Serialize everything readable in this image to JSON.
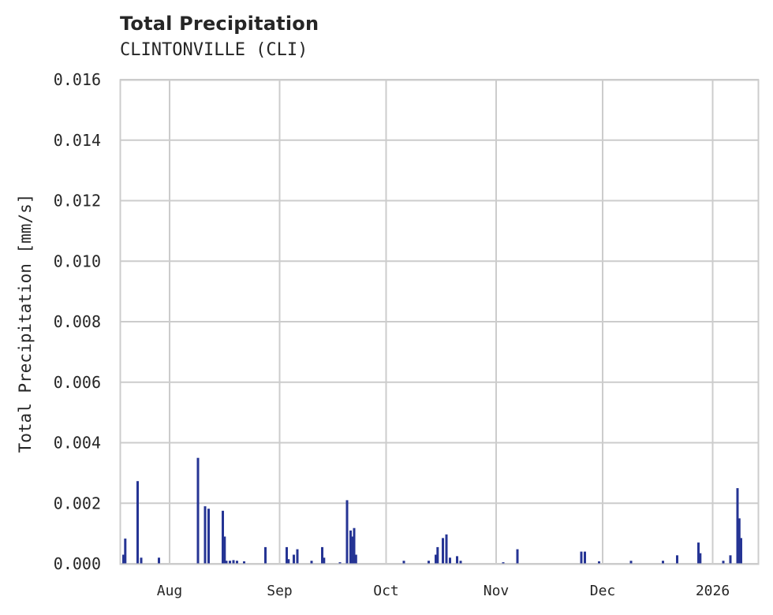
{
  "header": {
    "title": "Total Precipitation",
    "subtitle": "CLINTONVILLE (CLI)"
  },
  "colors": {
    "bar": "#253494",
    "grid": "#cccccc",
    "text": "#262626"
  },
  "chart_data": {
    "type": "bar",
    "title": "Total Precipitation",
    "subtitle": "CLINTONVILLE (CLI)",
    "xlabel": "",
    "ylabel": "Total Precipitation [mm/s]",
    "ylim": [
      0,
      0.016
    ],
    "yticks": [
      "0.000",
      "0.002",
      "0.004",
      "0.006",
      "0.008",
      "0.010",
      "0.012",
      "0.014",
      "0.016"
    ],
    "xticks": [
      "Aug",
      "Sep",
      "Oct",
      "Nov",
      "Dec",
      "2026"
    ],
    "xrange": [
      "2025-07-18",
      "2026-01-14"
    ],
    "grid": true,
    "legend": null,
    "series": [
      {
        "name": "Total Precipitation",
        "points": [
          {
            "x": "2025-07-19",
            "y": 0.0003
          },
          {
            "x": "2025-07-19T12",
            "y": 0.00083
          },
          {
            "x": "2025-07-23",
            "y": 0.00273
          },
          {
            "x": "2025-07-24",
            "y": 0.0002
          },
          {
            "x": "2025-07-29",
            "y": 0.0002
          },
          {
            "x": "2025-08-09",
            "y": 0.0035
          },
          {
            "x": "2025-08-11",
            "y": 0.0019
          },
          {
            "x": "2025-08-12",
            "y": 0.00182
          },
          {
            "x": "2025-08-16",
            "y": 0.00175
          },
          {
            "x": "2025-08-16T12",
            "y": 0.0009
          },
          {
            "x": "2025-08-17",
            "y": 0.0001
          },
          {
            "x": "2025-08-18",
            "y": 0.0001
          },
          {
            "x": "2025-08-19",
            "y": 0.00012
          },
          {
            "x": "2025-08-20",
            "y": 0.0001
          },
          {
            "x": "2025-08-22",
            "y": 8e-05
          },
          {
            "x": "2025-08-28",
            "y": 0.00055
          },
          {
            "x": "2025-09-03",
            "y": 0.00055
          },
          {
            "x": "2025-09-03T12",
            "y": 0.00015
          },
          {
            "x": "2025-09-05",
            "y": 0.0003
          },
          {
            "x": "2025-09-06",
            "y": 0.00048
          },
          {
            "x": "2025-09-10",
            "y": 0.0001
          },
          {
            "x": "2025-09-13",
            "y": 0.00055
          },
          {
            "x": "2025-09-13T12",
            "y": 0.0002
          },
          {
            "x": "2025-09-18",
            "y": 5e-05
          },
          {
            "x": "2025-09-20",
            "y": 0.0021
          },
          {
            "x": "2025-09-21",
            "y": 0.0011
          },
          {
            "x": "2025-09-21T12",
            "y": 0.0009
          },
          {
            "x": "2025-09-22",
            "y": 0.00118
          },
          {
            "x": "2025-09-22T12",
            "y": 0.0003
          },
          {
            "x": "2025-10-06",
            "y": 0.0001
          },
          {
            "x": "2025-10-13",
            "y": 0.0001
          },
          {
            "x": "2025-10-15",
            "y": 0.0003
          },
          {
            "x": "2025-10-15T12",
            "y": 0.00055
          },
          {
            "x": "2025-10-17",
            "y": 0.00085
          },
          {
            "x": "2025-10-18",
            "y": 0.00097
          },
          {
            "x": "2025-10-19",
            "y": 0.0002
          },
          {
            "x": "2025-10-21",
            "y": 0.00025
          },
          {
            "x": "2025-10-22",
            "y": 0.0001
          },
          {
            "x": "2025-11-03",
            "y": 5e-05
          },
          {
            "x": "2025-11-07",
            "y": 0.00048
          },
          {
            "x": "2025-11-25",
            "y": 0.0004
          },
          {
            "x": "2025-11-26",
            "y": 0.0004
          },
          {
            "x": "2025-11-30",
            "y": 8e-05
          },
          {
            "x": "2025-12-09",
            "y": 0.0001
          },
          {
            "x": "2025-12-18",
            "y": 0.0001
          },
          {
            "x": "2025-12-22",
            "y": 0.00028
          },
          {
            "x": "2025-12-28",
            "y": 0.0007
          },
          {
            "x": "2025-12-28T12",
            "y": 0.00035
          },
          {
            "x": "2026-01-04",
            "y": 0.0001
          },
          {
            "x": "2026-01-06",
            "y": 0.00028
          },
          {
            "x": "2026-01-08",
            "y": 0.0025
          },
          {
            "x": "2026-01-08T12",
            "y": 0.0015
          },
          {
            "x": "2026-01-09",
            "y": 0.00085
          }
        ]
      }
    ]
  }
}
